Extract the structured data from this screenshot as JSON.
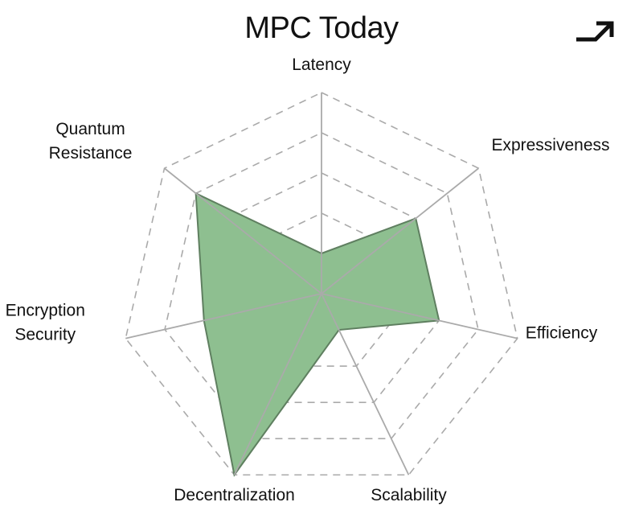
{
  "header": {
    "title": "MPC Today",
    "icon": "arrow-up-right-icon"
  },
  "chart_data": {
    "type": "radar",
    "title": "MPC Today",
    "axes": [
      {
        "key": "latency",
        "label": [
          "Latency"
        ]
      },
      {
        "key": "expressiveness",
        "label": [
          "Expressiveness"
        ]
      },
      {
        "key": "efficiency",
        "label": [
          "Efficiency"
        ]
      },
      {
        "key": "scalability",
        "label": [
          "Scalability"
        ]
      },
      {
        "key": "decentralization",
        "label": [
          "Decentralization"
        ]
      },
      {
        "key": "encryption_security",
        "label": [
          "Encryption",
          "Security"
        ]
      },
      {
        "key": "quantum_resistance",
        "label": [
          "Quantum",
          "Resistance"
        ]
      }
    ],
    "scale": {
      "min": 0,
      "max": 5,
      "rings": 5
    },
    "series": [
      {
        "values": [
          1.0,
          3.0,
          3.0,
          1.0,
          5.0,
          3.0,
          4.0
        ],
        "color": "#8ebf90",
        "stroke": "#5f7f60"
      }
    ],
    "grid": true,
    "grid_color": "#aaaaaa"
  }
}
